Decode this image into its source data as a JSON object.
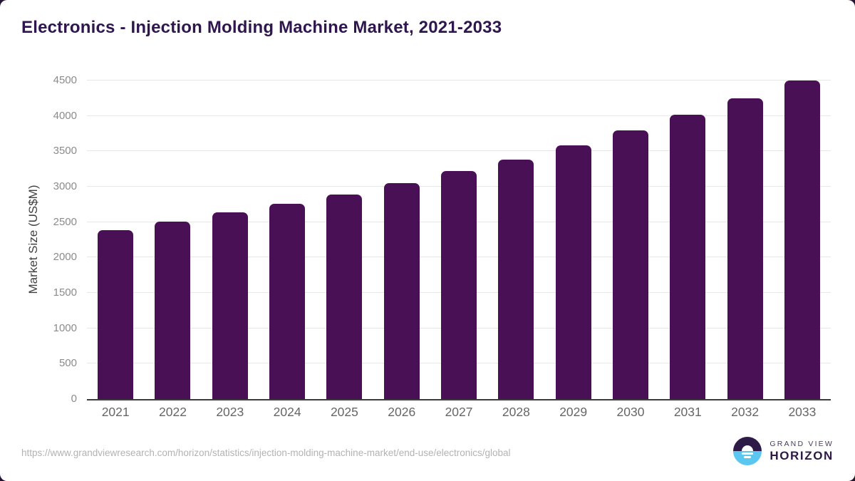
{
  "title": "Electronics - Injection Molding Machine Market, 2021-2033",
  "chart_data": {
    "type": "bar",
    "title": "Electronics - Injection Molding Machine Market, 2021-2033",
    "categories": [
      "2021",
      "2022",
      "2023",
      "2024",
      "2025",
      "2026",
      "2027",
      "2028",
      "2029",
      "2030",
      "2031",
      "2032",
      "2033"
    ],
    "values": [
      2390,
      2505,
      2640,
      2760,
      2890,
      3050,
      3225,
      3385,
      3585,
      3800,
      4020,
      4250,
      4505
    ],
    "xlabel": "",
    "ylabel": "Market Size (US$M)",
    "ylim": [
      0,
      4500
    ],
    "yticks": [
      0,
      500,
      1000,
      1500,
      2000,
      2500,
      3000,
      3500,
      4000,
      4500
    ],
    "grid": true,
    "legend": "none",
    "bar_color": "#4a1056"
  },
  "footer": {
    "source_url": "https://www.grandviewresearch.com/horizon/statistics/injection-molding-machine-market/end-use/electronics/global",
    "logo": {
      "top": "GRAND VIEW",
      "bottom": "HORIZON"
    }
  },
  "colors": {
    "bar": "#4a1056",
    "title": "#2f164e",
    "logo_purple": "#2e1a47",
    "logo_blue": "#5bc6f0",
    "axis_line": "#3d3d3d",
    "gridline": "#e7e7e7",
    "y_tick_text": "#8b8b8b",
    "x_tick_text": "#666666",
    "url_text": "#b3b3b3",
    "background_corner": "#241332"
  }
}
